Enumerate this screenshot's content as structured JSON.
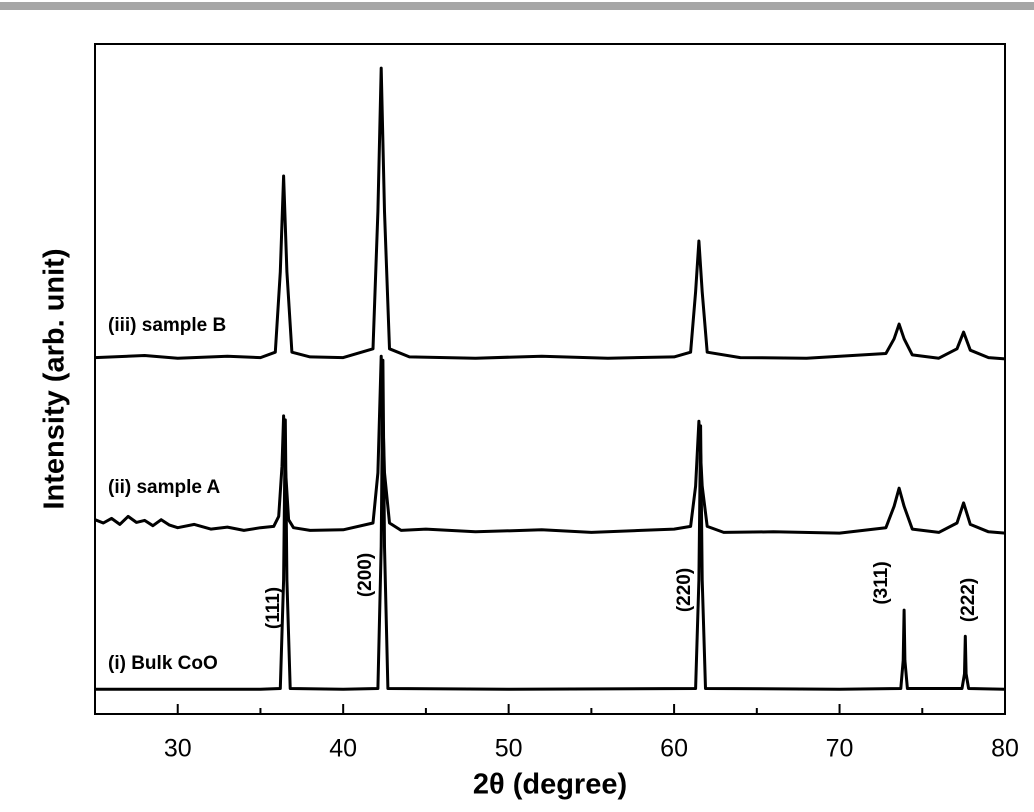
{
  "chart_data": {
    "type": "line",
    "x_label": "2θ (degree)",
    "y_label": "Intensity (arb. unit)",
    "xlim": [
      25,
      80
    ],
    "ylim": [
      0,
      100
    ],
    "xticks": [
      30,
      40,
      50,
      60,
      70,
      80
    ],
    "xminorticks": [
      35,
      45,
      55,
      65,
      75
    ],
    "annotations": [
      "(111)",
      "(200)",
      "(220)",
      "(311)",
      "(222)"
    ],
    "series": [
      {
        "name": "(i) Bulk CoO",
        "color": "#000000",
        "x": [
          25,
          30,
          35,
          36.2,
          36.4,
          36.5,
          36.6,
          36.8,
          40,
          42.1,
          42.3,
          42.4,
          42.5,
          42.7,
          50,
          61.3,
          61.5,
          61.6,
          61.7,
          61.9,
          70,
          73.7,
          73.85,
          73.9,
          73.95,
          74.1,
          77.4,
          77.55,
          77.6,
          77.65,
          77.8,
          80
        ],
        "values": [
          3.7,
          3.7,
          3.7,
          3.8,
          20,
          43.9,
          20,
          3.8,
          3.7,
          3.8,
          25,
          52.8,
          25,
          3.8,
          3.7,
          3.8,
          20,
          43,
          20,
          3.8,
          3.7,
          3.8,
          8,
          15.5,
          8,
          3.8,
          3.8,
          6,
          11.6,
          6,
          3.8,
          3.7
        ]
      },
      {
        "name": "(ii) sample A",
        "color": "#000000",
        "x": [
          25,
          25.5,
          26,
          26.5,
          27,
          27.5,
          28,
          28.5,
          29,
          29.5,
          30,
          31,
          32,
          33,
          34,
          35,
          35.8,
          36.1,
          36.3,
          36.4,
          36.5,
          36.7,
          37,
          38,
          40,
          41.8,
          42.1,
          42.3,
          42.5,
          42.8,
          43.5,
          45,
          48,
          52,
          55,
          58,
          60,
          61.0,
          61.3,
          61.5,
          61.7,
          62.0,
          63,
          66,
          70,
          72.8,
          73.3,
          73.6,
          73.9,
          74.4,
          76,
          77.1,
          77.5,
          77.9,
          79,
          80
        ],
        "values": [
          29,
          28.5,
          29.2,
          28.3,
          29.5,
          28.6,
          28.9,
          28.1,
          29,
          28.2,
          27.8,
          28.3,
          27.6,
          27.9,
          27.4,
          27.8,
          28,
          29.5,
          37,
          44.5,
          37,
          29,
          27.8,
          27.4,
          27.5,
          28.5,
          36,
          53.4,
          36,
          28.5,
          27.4,
          27.6,
          27.2,
          27.5,
          27.1,
          27.4,
          27.6,
          28,
          34,
          43.7,
          34,
          28,
          27.1,
          27.2,
          27.0,
          27.8,
          31,
          33.7,
          31,
          27.6,
          27.1,
          28.5,
          31.5,
          28.3,
          27.2,
          27.0
        ]
      },
      {
        "name": "(iii) sample B",
        "color": "#000000",
        "x": [
          25,
          28,
          30,
          33,
          35,
          35.9,
          36.2,
          36.4,
          36.6,
          36.9,
          38,
          40,
          41.8,
          42.1,
          42.3,
          42.5,
          42.8,
          44,
          48,
          52,
          56,
          60,
          61.0,
          61.3,
          61.5,
          61.7,
          62.0,
          64,
          68,
          72.8,
          73.3,
          73.6,
          73.9,
          74.4,
          76,
          77.1,
          77.5,
          77.9,
          79,
          80
        ],
        "values": [
          53.2,
          53.5,
          53.1,
          53.4,
          53.2,
          54,
          66,
          80.3,
          66,
          54,
          53.3,
          53.2,
          54.5,
          75,
          96.4,
          75,
          54.5,
          53.3,
          53.1,
          53.4,
          53.1,
          53.3,
          54,
          63,
          70.6,
          63,
          54,
          53.2,
          53.1,
          53.8,
          56,
          58.2,
          56,
          53.6,
          53.1,
          54.5,
          57,
          54.3,
          53.2,
          53.0
        ]
      }
    ]
  }
}
